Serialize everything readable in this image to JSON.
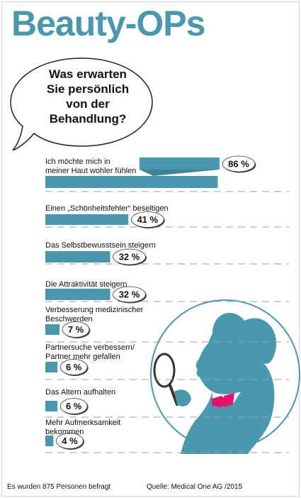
{
  "header": {
    "title": "Beauty-OPs"
  },
  "question": {
    "lines": [
      "Was erwarten",
      "Sie persönlich",
      "von der",
      "Behandlung?"
    ]
  },
  "colors": {
    "bar": "#4a98ad",
    "title": "#4a98ad",
    "accent": "#e6136e"
  },
  "chart_data": {
    "type": "bar",
    "orientation": "horizontal",
    "unit": "%",
    "categories": [
      "Ich möchte mich in meiner Haut wohler fühlen",
      "Einen „Schönheitsfehler“ beseitigen",
      "Das Selbstbewusstsein steigern",
      "Die Attraktivität steigern",
      "Verbesserung medizinischer Beschwerden",
      "Partnersuche verbessern/ Partner mehr gefallen",
      "Das Altern aufhalten",
      "Mehr Aufmerksamkeit bekommen"
    ],
    "values": [
      86,
      41,
      32,
      32,
      7,
      6,
      6,
      4
    ],
    "value_labels": [
      "86 %",
      "41 %",
      "32 %",
      "32 %",
      "7 %",
      "6 %",
      "6 %",
      "4 %"
    ],
    "label_lines": [
      [
        "Ich möchte mich in",
        "meiner Haut wohler fühlen"
      ],
      [
        "Einen „Schönheitsfehler“ beseitigen"
      ],
      [
        "Das Selbstbewusstsein steigern"
      ],
      [
        "Die Attraktivität steigern"
      ],
      [
        "Verbesserung medizinischer",
        "Beschwerden"
      ],
      [
        "Partnersuche verbessern/",
        "Partner mehr gefallen"
      ],
      [
        "Das Altern aufhalten"
      ],
      [
        "Mehr Aufmerksamkeit",
        "bekommen"
      ]
    ],
    "xlim": [
      0,
      100
    ],
    "grid": false
  },
  "footer": {
    "note": "Es wurden 875 Personen befragt",
    "source": "Quelle: Medical One AG /2015"
  }
}
